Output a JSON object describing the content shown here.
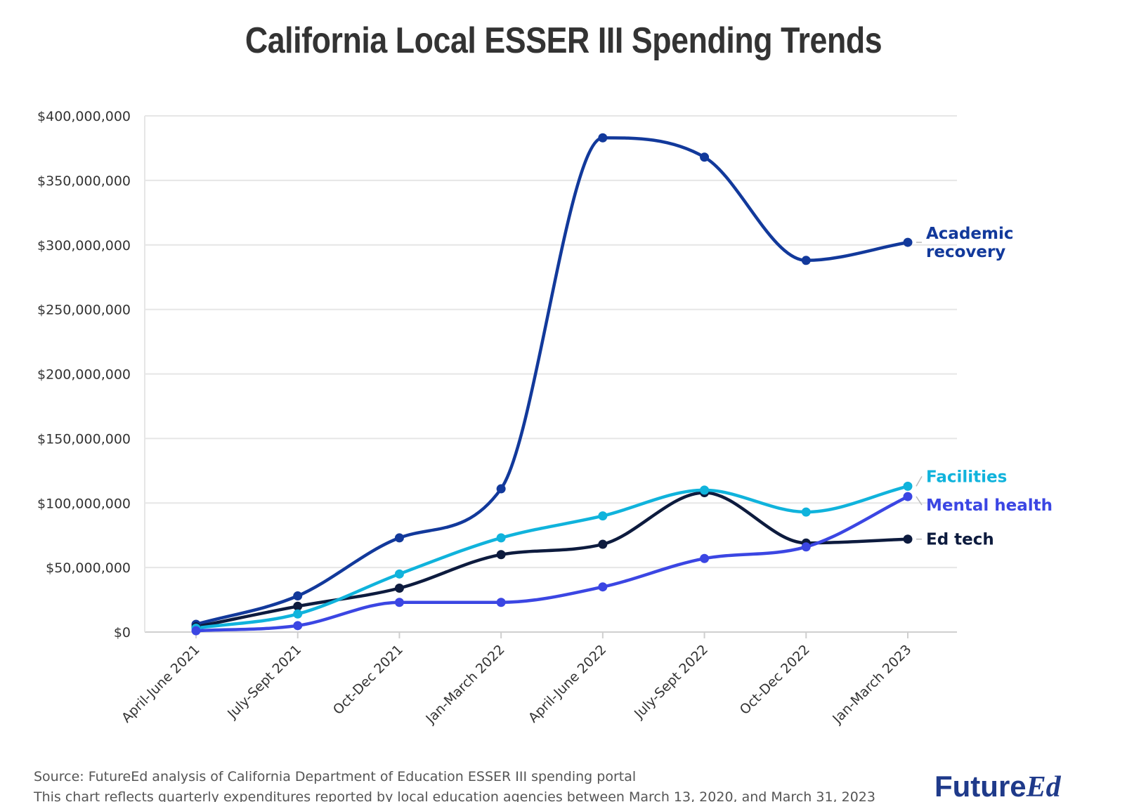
{
  "chart_data": {
    "type": "line",
    "title": "California Local ESSER III Spending Trends",
    "xlabel": "",
    "ylabel": "",
    "categories": [
      "April-June 2021",
      "July-Sept 2021",
      "Oct-Dec 2021",
      "Jan-March 2022",
      "April-June 2022",
      "July-Sept 2022",
      "Oct-Dec 2022",
      "Jan-March 2023"
    ],
    "ylim": [
      0,
      400000000
    ],
    "yticks": [
      0,
      50000000,
      100000000,
      150000000,
      200000000,
      250000000,
      300000000,
      350000000,
      400000000
    ],
    "ytick_labels": [
      "$0",
      "$50,000,000",
      "$100,000,000",
      "$150,000,000",
      "$200,000,000",
      "$250,000,000",
      "$300,000,000",
      "$350,000,000",
      "$400,000,000"
    ],
    "grid": true,
    "legend": "direct labels at line ends (right)",
    "series": [
      {
        "name": "Academic recovery",
        "label_lines": [
          "Academic",
          "recovery"
        ],
        "color": "#12399b",
        "values": [
          6000000,
          28000000,
          73000000,
          111000000,
          383000000,
          368000000,
          288000000,
          302000000
        ]
      },
      {
        "name": "Facilities",
        "label_lines": [
          "Facilities"
        ],
        "color": "#10b3dc",
        "values": [
          3000000,
          14000000,
          45000000,
          73000000,
          90000000,
          110000000,
          93000000,
          113000000
        ]
      },
      {
        "name": "Mental health",
        "label_lines": [
          "Mental health"
        ],
        "color": "#3b46e3",
        "values": [
          1000000,
          5000000,
          23000000,
          23000000,
          35000000,
          57000000,
          66000000,
          105000000
        ]
      },
      {
        "name": "Ed tech",
        "label_lines": [
          "Ed tech"
        ],
        "color": "#0d1b3e",
        "values": [
          4000000,
          20000000,
          34000000,
          60000000,
          68000000,
          108000000,
          69000000,
          72000000
        ]
      }
    ]
  },
  "footer": {
    "source": "Source: FutureEd analysis of California Department of Education ESSER III spending portal",
    "note": "This chart reflects quarterly expenditures reported by local education agencies between March 13, 2020, and March 31, 2023"
  },
  "logo": {
    "part1": "Future",
    "part2": "Ed"
  }
}
